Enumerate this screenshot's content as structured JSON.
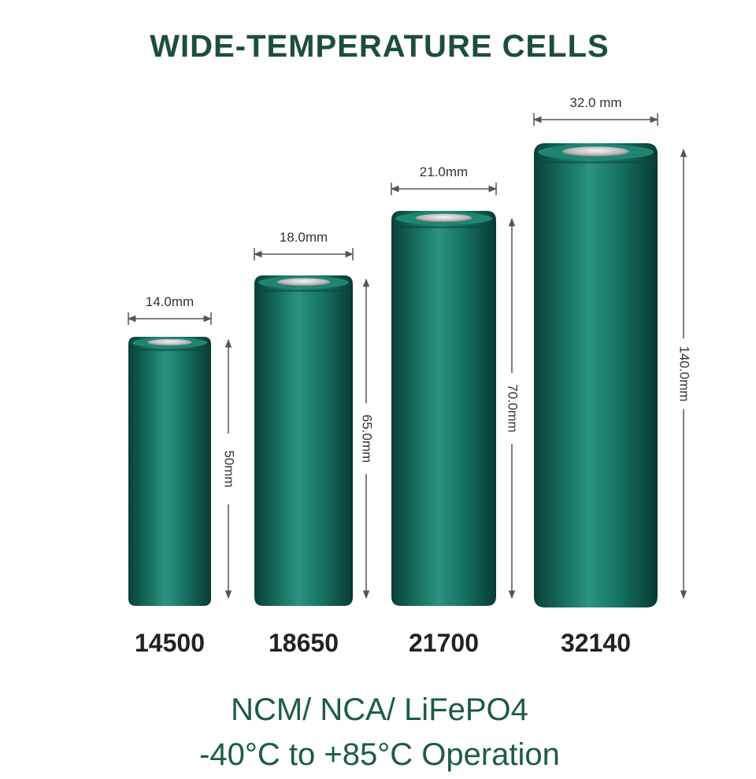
{
  "title": "WIDE-TEMPERATURE CELLS",
  "cells": [
    {
      "model": "14500",
      "diameter": "14.0mm",
      "height": "50mm"
    },
    {
      "model": "18650",
      "diameter": "18.0mm",
      "height": "65.0mm"
    },
    {
      "model": "21700",
      "diameter": "21.0mm",
      "height": "70.0mm"
    },
    {
      "model": "32140",
      "diameter": "32.0 mm",
      "height": "140.0mm"
    }
  ],
  "footer": {
    "chemistry": "NCM/ NCA/ LiFePO4",
    "operation": "-40°C to +85°C Operation"
  }
}
